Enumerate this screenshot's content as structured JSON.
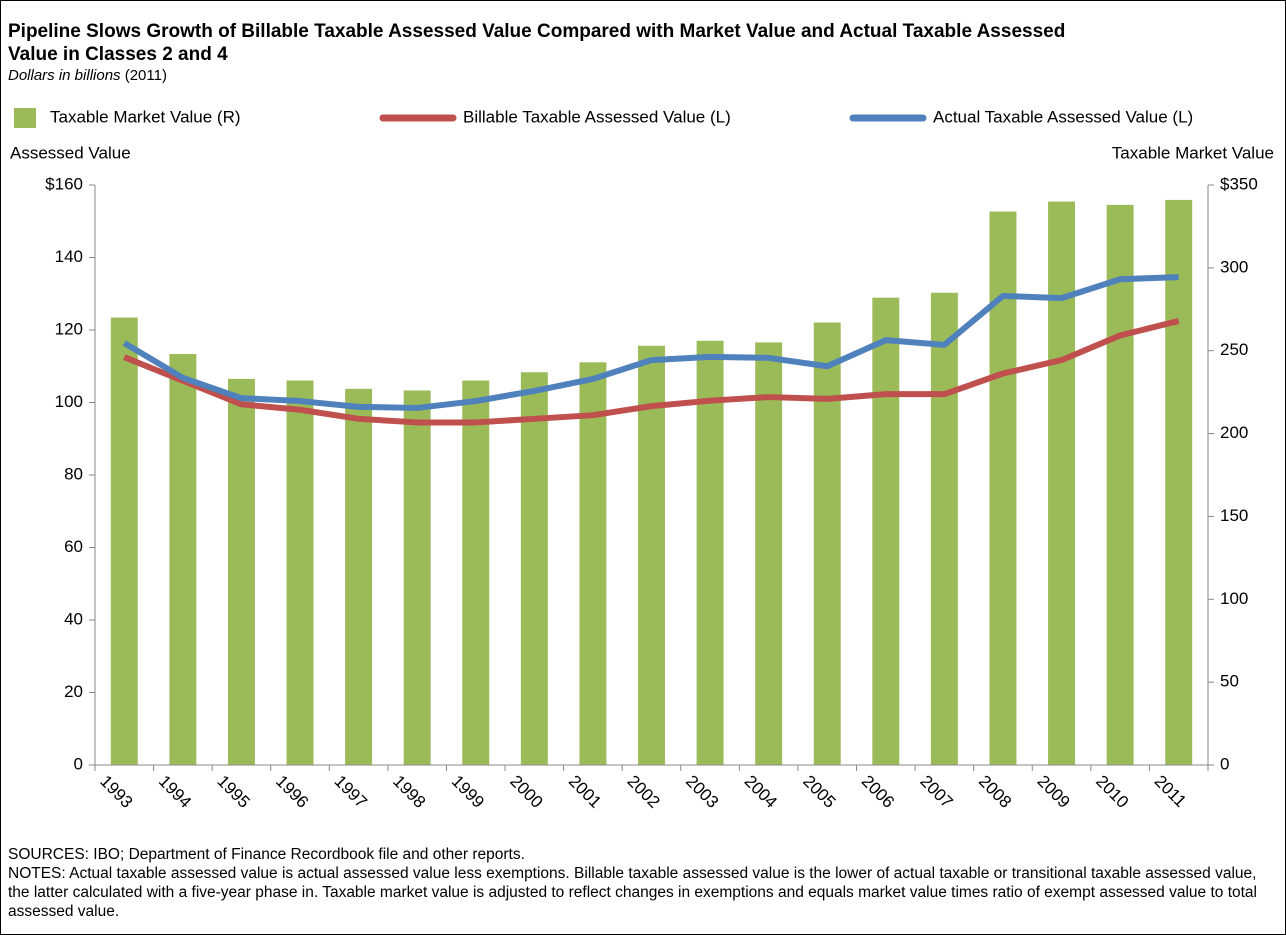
{
  "chart_data": {
    "type": "bar_line",
    "title": "Pipeline Slows Growth of Billable Taxable Assessed Value Compared with Market Value and Actual Taxable Assessed Value in Classes 2 and 4",
    "subtitle": "Dollars in billions",
    "subtitle_year": "(2011)",
    "y_label": "Assessed Value",
    "y2_label": "Taxable Market Value",
    "categories": [
      "1993",
      "1994",
      "1995",
      "1996",
      "1997",
      "1998",
      "1999",
      "2000",
      "2001",
      "2002",
      "2003",
      "2004",
      "2005",
      "2006",
      "2007",
      "2008",
      "2009",
      "2010",
      "2011"
    ],
    "series": [
      {
        "name": "Taxable Market Value (R)",
        "type": "bar",
        "axis": "y2",
        "color": "#9bbb59",
        "values": [
          270,
          248,
          233,
          232,
          227,
          226,
          232,
          237,
          243,
          253,
          256,
          255,
          267,
          282,
          285,
          334,
          340,
          338,
          341
        ]
      },
      {
        "name": "Billable Taxable Assessed Value (L)",
        "type": "line",
        "color": "#c0504d",
        "values": [
          112.5,
          106,
          99.5,
          98,
          95.5,
          94.5,
          94.5,
          95.5,
          96.5,
          99,
          100.5,
          101.5,
          101,
          102.3,
          102.3,
          108,
          111.7,
          118.5,
          122.5
        ]
      },
      {
        "name": "Actual Taxable Assessed Value (L)",
        "type": "line",
        "color": "#4f81bd",
        "values": [
          116.4,
          106.8,
          101.2,
          100.4,
          98.8,
          98.5,
          100.4,
          103.2,
          106.5,
          111.7,
          112.6,
          112.3,
          110,
          117.2,
          115.9,
          129.4,
          128.8,
          134,
          134.6
        ]
      }
    ],
    "ylim": [
      0,
      160
    ],
    "yticks": [
      0,
      20,
      40,
      60,
      80,
      100,
      120,
      140,
      {
        "value": 160,
        "label": "$160"
      }
    ],
    "y2lim": [
      0,
      350
    ],
    "y2ticks": [
      0,
      50,
      100,
      150,
      200,
      250,
      300,
      {
        "value": 350,
        "label": "$350"
      }
    ],
    "sources": "SOURCES: IBO; Department of Finance Recordbook file and other reports.",
    "notes": "NOTES: Actual taxable assessed value is actual assessed value less exemptions. Billable taxable assessed value is the lower of actual taxable or transitional taxable assessed value, the latter calculated with a five-year phase in. Taxable market value is adjusted to reflect changes in exemptions and equals market value times ratio of exempt assessed value to total assessed value."
  }
}
